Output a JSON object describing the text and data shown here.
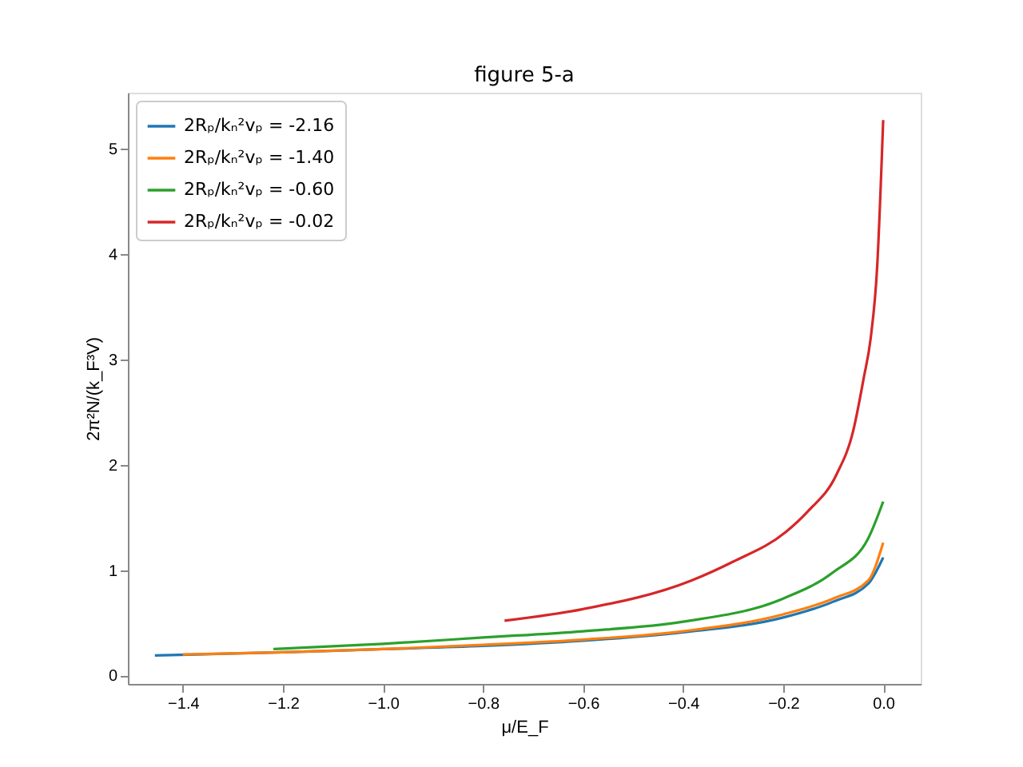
{
  "chart_data": {
    "type": "line",
    "title": "figure 5-a",
    "xlabel": "μ/E_F",
    "ylabel": "2π²N/(k_F³V)",
    "xlim": [
      -1.51,
      0.075
    ],
    "ylim": [
      -0.08,
      5.53
    ],
    "xticks": [
      {
        "value": -1.4,
        "label": "−1.4"
      },
      {
        "value": -1.2,
        "label": "−1.2"
      },
      {
        "value": -1.0,
        "label": "−1.0"
      },
      {
        "value": -0.8,
        "label": "−0.8"
      },
      {
        "value": -0.6,
        "label": "−0.6"
      },
      {
        "value": -0.4,
        "label": "−0.4"
      },
      {
        "value": -0.2,
        "label": "−0.2"
      },
      {
        "value": 0.0,
        "label": "0.0"
      }
    ],
    "yticks": [
      0,
      1,
      2,
      3,
      4,
      5
    ],
    "legend": "top left",
    "grid": false,
    "marker": "none",
    "line_style": "solid",
    "series": [
      {
        "name": "2Rₚ/kₙ²vₚ = -2.16",
        "color": "#1f77b4",
        "x": [
          -1.456,
          -1.2,
          -1.0,
          -0.8,
          -0.6,
          -0.4,
          -0.2,
          -0.1,
          -0.03,
          0.0
        ],
        "values": [
          0.19,
          0.22,
          0.25,
          0.28,
          0.33,
          0.41,
          0.55,
          0.7,
          0.87,
          1.12
        ]
      },
      {
        "name": "2Rₚ/kₙ²vₚ = -1.40",
        "color": "#ff7f0e",
        "x": [
          -1.4,
          -1.2,
          -1.0,
          -0.8,
          -0.6,
          -0.4,
          -0.2,
          -0.1,
          -0.03,
          0.0
        ],
        "values": [
          0.2,
          0.22,
          0.25,
          0.29,
          0.34,
          0.42,
          0.58,
          0.73,
          0.9,
          1.26
        ]
      },
      {
        "name": "2Rₚ/kₙ²vₚ = -0.60",
        "color": "#2ca02c",
        "x": [
          -1.219,
          -1.0,
          -0.8,
          -0.6,
          -0.4,
          -0.2,
          -0.1,
          -0.03,
          0.0
        ],
        "values": [
          0.25,
          0.3,
          0.36,
          0.42,
          0.51,
          0.73,
          0.98,
          1.3,
          1.65
        ]
      },
      {
        "name": "2Rₚ/kₙ²vₚ = -0.02",
        "color": "#d62728",
        "x": [
          -0.757,
          -0.6,
          -0.384,
          -0.3,
          -0.195,
          -0.15,
          -0.093,
          -0.06,
          -0.039,
          -0.025,
          -0.012,
          0.0
        ],
        "values": [
          0.52,
          0.63,
          0.9,
          1.08,
          1.36,
          1.56,
          1.91,
          2.32,
          2.82,
          3.2,
          3.88,
          5.27
        ]
      }
    ]
  }
}
